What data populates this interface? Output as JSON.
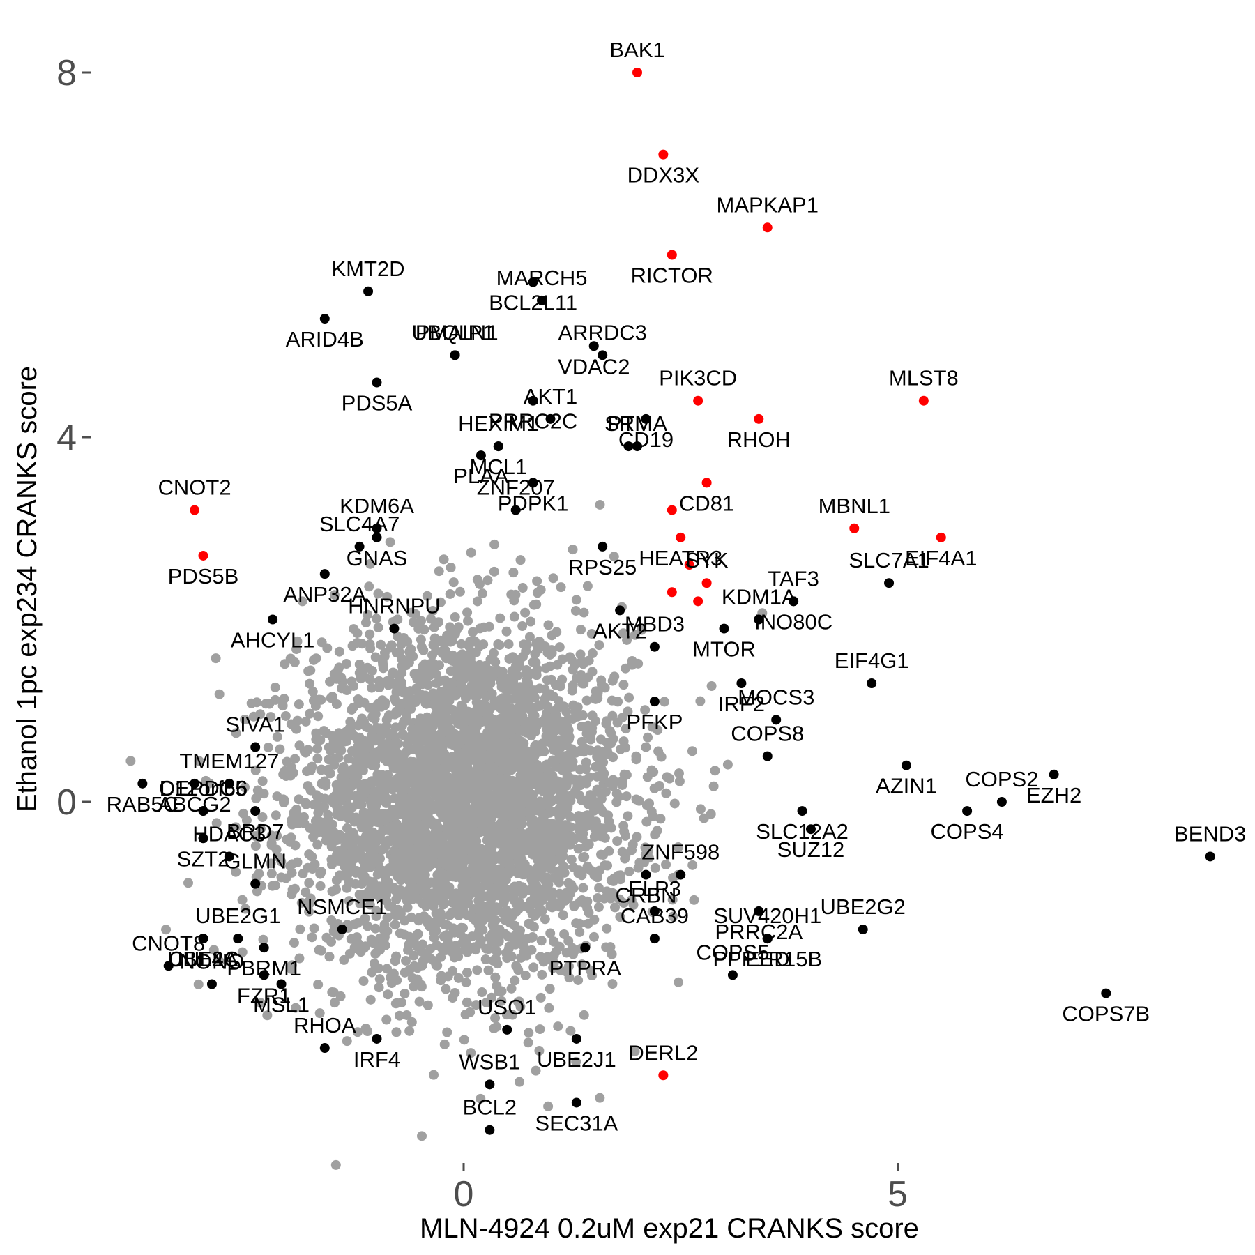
{
  "chart_data": {
    "type": "scatter",
    "title": "",
    "xlabel": "MLN-4924 0.2uM exp21 CRANKS score",
    "ylabel": "Ethanol 1pc exp234 CRANKS score",
    "xlim": [
      -4.3,
      8.9
    ],
    "ylim": [
      -4.0,
      8.4
    ],
    "x_ticks": [
      0,
      5
    ],
    "y_ticks": [
      0,
      4,
      8
    ],
    "grid": false,
    "legend": "none",
    "colors": {
      "background": "#ffffff",
      "background_points": "#a0a0a0",
      "hit_points": "#000000",
      "highlight_points": "#ff0000",
      "tick_text": "#4d4d4d"
    },
    "highlighted_genes": [
      {
        "label": "BAK1",
        "x": 2.0,
        "y": 8.0
      },
      {
        "label": "DDX3X",
        "x": 2.3,
        "y": 7.1
      },
      {
        "label": "MAPKAP1",
        "x": 3.5,
        "y": 6.3
      },
      {
        "label": "RICTOR",
        "x": 2.4,
        "y": 6.0
      },
      {
        "label": "PIK3CD",
        "x": 2.7,
        "y": 4.4
      },
      {
        "label": "RHOH",
        "x": 3.4,
        "y": 4.2
      },
      {
        "label": "MLST8",
        "x": 5.3,
        "y": 4.4
      },
      {
        "label": "CD81",
        "x": 2.8,
        "y": 3.5
      },
      {
        "label": "CNOT2",
        "x": -3.1,
        "y": 3.2
      },
      {
        "label": "PDS5B",
        "x": -3.0,
        "y": 2.7
      },
      {
        "label": "MBNL1",
        "x": 4.5,
        "y": 3.0
      },
      {
        "label": "EIF4A1",
        "x": 5.5,
        "y": 2.9
      },
      {
        "label": "SYK",
        "x": 2.8,
        "y": 2.4
      },
      {
        "label": "HEATR3",
        "x": 2.5,
        "y": 2.9
      },
      {
        "label": "DERL2",
        "x": 2.3,
        "y": -3.0
      },
      {
        "label": "",
        "x": 2.4,
        "y": 3.2
      },
      {
        "label": "",
        "x": 2.6,
        "y": 2.6
      },
      {
        "label": "",
        "x": 2.4,
        "y": 2.3
      },
      {
        "label": "",
        "x": 2.7,
        "y": 2.2
      }
    ],
    "hit_genes": [
      {
        "label": "KMT2D",
        "x": -1.1,
        "y": 5.6
      },
      {
        "label": "BCL2L11",
        "x": 0.8,
        "y": 5.7
      },
      {
        "label": "MARCH5",
        "x": 0.9,
        "y": 5.5
      },
      {
        "label": "ARID4B",
        "x": -1.6,
        "y": 5.3
      },
      {
        "label": "PMAIP1",
        "x": -0.1,
        "y": 4.9
      },
      {
        "label": "VDAC2",
        "x": 1.5,
        "y": 5.0
      },
      {
        "label": "ARRDC3",
        "x": 1.6,
        "y": 4.9
      },
      {
        "label": "PRRC2C",
        "x": 0.8,
        "y": 4.4
      },
      {
        "label": "UBQLN1",
        "x": -0.1,
        "y": 4.9
      },
      {
        "label": "PDS5A",
        "x": -1.0,
        "y": 4.6
      },
      {
        "label": "AKT1",
        "x": 1.0,
        "y": 4.2
      },
      {
        "label": "CD19",
        "x": 2.1,
        "y": 4.2
      },
      {
        "label": "PTMA",
        "x": 2.0,
        "y": 3.9
      },
      {
        "label": "MCL1",
        "x": 0.4,
        "y": 3.9
      },
      {
        "label": "HEXIM1",
        "x": 0.4,
        "y": 3.9
      },
      {
        "label": "PLAA",
        "x": 0.2,
        "y": 3.8
      },
      {
        "label": "SRM",
        "x": 1.9,
        "y": 3.9
      },
      {
        "label": "PDPK1",
        "x": 0.8,
        "y": 3.5
      },
      {
        "label": "KDM6A",
        "x": -1.0,
        "y": 3.0
      },
      {
        "label": "GNAS",
        "x": -1.0,
        "y": 2.9
      },
      {
        "label": "ZNF207",
        "x": 0.6,
        "y": 3.2
      },
      {
        "label": "RPS25",
        "x": 1.6,
        "y": 2.8
      },
      {
        "label": "SLC4A7",
        "x": -1.2,
        "y": 2.8
      },
      {
        "label": "ANP32A",
        "x": -1.6,
        "y": 2.5
      },
      {
        "label": "TAF3",
        "x": 3.8,
        "y": 2.2
      },
      {
        "label": "INO80C",
        "x": 3.8,
        "y": 2.2
      },
      {
        "label": "SLC7A1",
        "x": 4.9,
        "y": 2.4
      },
      {
        "label": "AKT2",
        "x": 1.8,
        "y": 2.1
      },
      {
        "label": "KDM1A",
        "x": 3.4,
        "y": 2.0
      },
      {
        "label": "AHCYL1",
        "x": -2.2,
        "y": 2.0
      },
      {
        "label": "HNRNPU",
        "x": -0.8,
        "y": 1.9
      },
      {
        "label": "MTOR",
        "x": 3.0,
        "y": 1.9
      },
      {
        "label": "MBD3",
        "x": 2.2,
        "y": 1.7
      },
      {
        "label": "IRF2",
        "x": 3.2,
        "y": 1.3
      },
      {
        "label": "EIF4G1",
        "x": 4.7,
        "y": 1.3
      },
      {
        "label": "PFKP",
        "x": 2.2,
        "y": 1.1
      },
      {
        "label": "MOCS3",
        "x": 3.6,
        "y": 0.9
      },
      {
        "label": "ABCG2",
        "x": -3.1,
        "y": 0.2
      },
      {
        "label": "SIVA1",
        "x": -2.4,
        "y": 0.6
      },
      {
        "label": "RAB5C",
        "x": -3.7,
        "y": 0.2
      },
      {
        "label": "TMEM127",
        "x": -2.7,
        "y": 0.2
      },
      {
        "label": "AZIN1",
        "x": 5.1,
        "y": 0.4
      },
      {
        "label": "COPS8",
        "x": 3.5,
        "y": 0.5
      },
      {
        "label": "EZH2",
        "x": 6.8,
        "y": 0.3
      },
      {
        "label": "DEPDC5",
        "x": -3.0,
        "y": -0.1
      },
      {
        "label": "BRD7",
        "x": -2.4,
        "y": -0.1
      },
      {
        "label": "C12orf66",
        "x": -3.0,
        "y": -0.1
      },
      {
        "label": "SLC12A2",
        "x": 3.9,
        "y": -0.1
      },
      {
        "label": "COPS2",
        "x": 6.2,
        "y": 0.0
      },
      {
        "label": "COPS4",
        "x": 5.8,
        "y": -0.1
      },
      {
        "label": "BEND3",
        "x": 8.6,
        "y": -0.6
      },
      {
        "label": "SZT2",
        "x": -3.0,
        "y": -0.4
      },
      {
        "label": "HDAC3",
        "x": -2.7,
        "y": -0.6
      },
      {
        "label": "SUZ12",
        "x": 4.0,
        "y": -0.3
      },
      {
        "label": "GLMN",
        "x": -2.4,
        "y": -0.9
      },
      {
        "label": "CRBN",
        "x": 2.1,
        "y": -0.8
      },
      {
        "label": "ZNF598",
        "x": 2.5,
        "y": -0.8
      },
      {
        "label": "CUL4A",
        "x": -3.0,
        "y": -1.5
      },
      {
        "label": "UBE2G1",
        "x": -2.6,
        "y": -1.5
      },
      {
        "label": "PBRM1",
        "x": -2.3,
        "y": -1.6
      },
      {
        "label": "ELP3",
        "x": 2.2,
        "y": -1.2
      },
      {
        "label": "PRRC2A",
        "x": 3.4,
        "y": -1.2
      },
      {
        "label": "CAB39",
        "x": 2.2,
        "y": -1.5
      },
      {
        "label": "UBE2C",
        "x": -3.0,
        "y": -1.5
      },
      {
        "label": "NSMCE1",
        "x": -1.4,
        "y": -1.4
      },
      {
        "label": "EED",
        "x": 3.5,
        "y": -1.5
      },
      {
        "label": "UBE2G2",
        "x": 4.6,
        "y": -1.4
      },
      {
        "label": "PPP1R15B",
        "x": 3.5,
        "y": -1.5
      },
      {
        "label": "SUV420H1",
        "x": 3.5,
        "y": -1.5
      },
      {
        "label": "PTPRA",
        "x": 1.4,
        "y": -1.6
      },
      {
        "label": "CNOT8",
        "x": -3.4,
        "y": -1.8
      },
      {
        "label": "FZR1",
        "x": -2.3,
        "y": -1.9
      },
      {
        "label": "COPS5",
        "x": 3.1,
        "y": -1.9
      },
      {
        "label": "COPS7B",
        "x": 7.4,
        "y": -2.1
      },
      {
        "label": "NONO",
        "x": -2.9,
        "y": -2.0
      },
      {
        "label": "MSL1",
        "x": -2.1,
        "y": -2.0
      },
      {
        "label": "USO1",
        "x": 0.5,
        "y": -2.5
      },
      {
        "label": "UBE2J1",
        "x": 1.3,
        "y": -2.6
      },
      {
        "label": "RHOA",
        "x": -1.6,
        "y": -2.7
      },
      {
        "label": "IRF4",
        "x": -1.0,
        "y": -2.6
      },
      {
        "label": "WSB1",
        "x": 0.3,
        "y": -3.1
      },
      {
        "label": "SEC31A",
        "x": 1.3,
        "y": -3.3
      },
      {
        "label": "BCL2",
        "x": 0.3,
        "y": -3.6
      }
    ],
    "background_cloud": {
      "n_points": 3800,
      "mean": [
        0.0,
        0.0
      ],
      "sd": [
        0.95,
        0.95
      ]
    }
  }
}
